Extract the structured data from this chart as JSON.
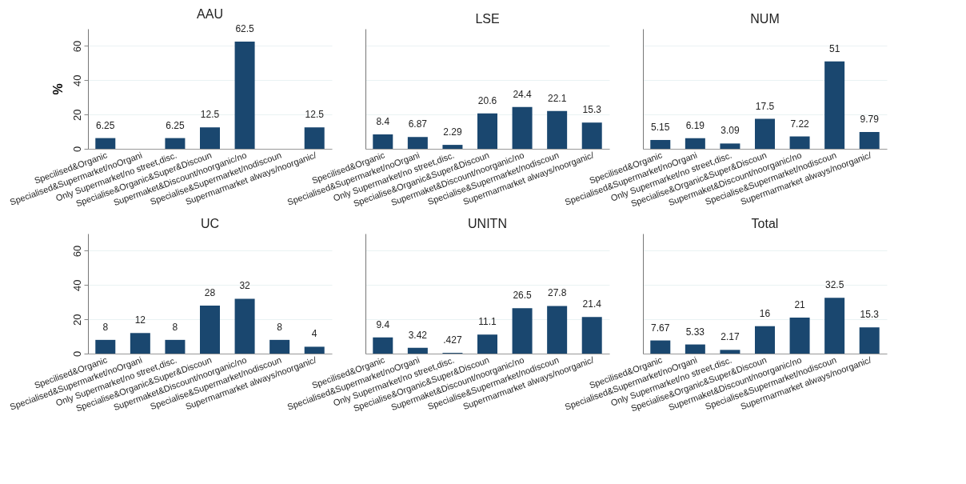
{
  "chart_data": [
    {
      "type": "bar",
      "title": "AAU",
      "ylabel": "%",
      "categories": [
        "Specilised&Organic",
        "Specialised&Supermarket/noOrgani",
        "Only Supermarket/no street,disc.",
        "Specialise&Organic&Super&Discoun",
        "Supermaket&Discount/noorganic/no",
        "Specialise&Supermarket/nodiscoun",
        "Supermarmarket always/noorganic/"
      ],
      "values": [
        6.25,
        null,
        6.25,
        12.5,
        62.5,
        null,
        12.5
      ],
      "value_labels": [
        "6.25",
        null,
        "6.25",
        "12.5",
        "62.5",
        null,
        "12.5"
      ],
      "color": "#1a476f",
      "ylim": [
        0,
        70
      ],
      "yticks": [
        0,
        20,
        40,
        60
      ],
      "grid": "y"
    },
    {
      "type": "bar",
      "title": "LSE",
      "categories": [
        "Specilised&Organic",
        "Specialised&Supermarket/noOrgani",
        "Only Supermarket/no street,disc.",
        "Specialise&Organic&Super&Discoun",
        "Supermaket&Discount/noorganic/no",
        "Specialise&Supermarket/nodiscoun",
        "Supermarmarket always/noorganic/"
      ],
      "values": [
        8.4,
        6.87,
        2.29,
        20.6,
        24.4,
        22.1,
        15.3
      ],
      "value_labels": [
        "8.4",
        "6.87",
        "2.29",
        "20.6",
        "24.4",
        "22.1",
        "15.3"
      ],
      "color": "#1a476f",
      "ylim": [
        0,
        70
      ],
      "yticks": [
        0,
        20,
        40,
        60
      ],
      "grid": "y",
      "tick_labels": "x"
    },
    {
      "type": "bar",
      "title": "NUM",
      "categories": [
        "Specilised&Organic",
        "Specialised&Supermarket/noOrgani",
        "Only Supermarket/no street,disc.",
        "Specialise&Organic&Super&Discoun",
        "Supermaket&Discount/noorganic/no",
        "Specialise&Supermarket/nodiscoun",
        "Supermarmarket always/noorganic/"
      ],
      "values": [
        5.15,
        6.19,
        3.09,
        17.5,
        7.22,
        51,
        9.79
      ],
      "value_labels": [
        "5.15",
        "6.19",
        "3.09",
        "17.5",
        "7.22",
        "51",
        "9.79"
      ],
      "color": "#1a476f",
      "ylim": [
        0,
        70
      ],
      "yticks": [
        0,
        20,
        40,
        60
      ],
      "grid": "y",
      "tick_labels": "x"
    },
    {
      "type": "bar",
      "title": "UC",
      "categories": [
        "Specilised&Organic",
        "Specialised&Supermarket/noOrgani",
        "Only Supermarket/no street,disc.",
        "Specialise&Organic&Super&Discoun",
        "Supermaket&Discount/noorganic/no",
        "Specialise&Supermarket/nodiscoun",
        "Supermarmarket always/noorganic/"
      ],
      "values": [
        8,
        12,
        8,
        28,
        32,
        8,
        4
      ],
      "value_labels": [
        "8",
        "12",
        "8",
        "28",
        "32",
        "8",
        "4"
      ],
      "color": "#1a476f",
      "ylim": [
        0,
        70
      ],
      "yticks": [
        0,
        20,
        40,
        60
      ],
      "grid": "y"
    },
    {
      "type": "bar",
      "title": "UNITN",
      "categories": [
        "Specilised&Organic",
        "Specialised&Supermarket/noOrgani",
        "Only Supermarket/no street,disc.",
        "Specialise&Organic&Super&Discoun",
        "Supermaket&Discount/noorganic/no",
        "Specialise&Supermarket/nodiscoun",
        "Supermarmarket always/noorganic/"
      ],
      "values": [
        9.4,
        3.42,
        0.427,
        11.1,
        26.5,
        27.8,
        21.4
      ],
      "value_labels": [
        "9.4",
        "3.42",
        ".427",
        "11.1",
        "26.5",
        "27.8",
        "21.4"
      ],
      "color": "#1a476f",
      "ylim": [
        0,
        70
      ],
      "yticks": [
        0,
        20,
        40,
        60
      ],
      "grid": "y",
      "tick_labels": "x"
    },
    {
      "type": "bar",
      "title": "Total",
      "categories": [
        "Specilised&Organic",
        "Specialised&Supermarket/noOrgani",
        "Only Supermarket/no street,disc.",
        "Specialise&Organic&Super&Discoun",
        "Supermaket&Discount/noorganic/no",
        "Specialise&Supermarket/nodiscoun",
        "Supermarmarket always/noorganic/"
      ],
      "values": [
        7.67,
        5.33,
        2.17,
        16,
        21,
        32.5,
        15.3
      ],
      "value_labels": [
        "7.67",
        "5.33",
        "2.17",
        "16",
        "21",
        "32.5",
        "15.3"
      ],
      "color": "#1a476f",
      "ylim": [
        0,
        70
      ],
      "yticks": [
        0,
        20,
        40,
        60
      ],
      "grid": "y",
      "tick_labels": "x"
    }
  ]
}
